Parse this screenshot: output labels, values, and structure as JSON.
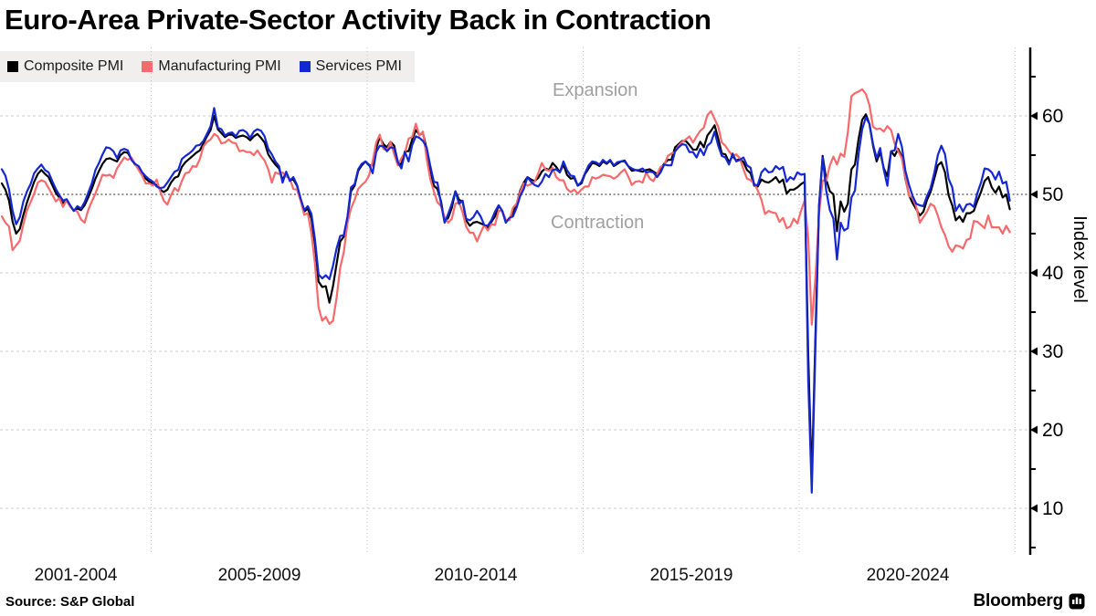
{
  "title": "Euro-Area Private-Sector Activity Back in Contraction",
  "legend": {
    "background": "#f0efed",
    "items": [
      {
        "label": "Composite PMI",
        "color": "#000000"
      },
      {
        "label": "Manufacturing PMI",
        "color": "#f8696b"
      },
      {
        "label": "Services PMI",
        "color": "#1527d3"
      }
    ]
  },
  "annotations": {
    "expansion": "Expansion",
    "contraction": "Contraction",
    "color": "#a0a0a0"
  },
  "y_axis": {
    "label": "Index level",
    "ticks": [
      10,
      20,
      30,
      40,
      50,
      60
    ],
    "minor_ticks": [
      5,
      15,
      25,
      35,
      45,
      55,
      65
    ],
    "midline_value": 50
  },
  "x_axis": {
    "labels": [
      "2001-2004",
      "2005-2009",
      "2010-2014",
      "2015-2019",
      "2020-2024"
    ],
    "gridline_years": [
      2005,
      2010,
      2015,
      2020,
      2025
    ]
  },
  "source": "Source: S&P Global",
  "brand": "Bloomberg",
  "chart_data": {
    "type": "line",
    "title": "Euro-Area Private-Sector Activity Back in Contraction",
    "xlabel": "",
    "ylabel": "Index level",
    "ylim": [
      4,
      69
    ],
    "grid": true,
    "legend_position": "top-left",
    "frequency": "monthly",
    "x_start": {
      "year": 2001,
      "month": 7
    },
    "x_end": {
      "year": 2024,
      "month": 11
    },
    "x_tick_labels": [
      "2001-2004",
      "2005-2009",
      "2010-2014",
      "2015-2019",
      "2020-2024"
    ],
    "reference_line": {
      "value": 50,
      "labels_above_below": [
        "Expansion",
        "Contraction"
      ]
    },
    "series": [
      {
        "name": "Composite PMI",
        "color": "#000000",
        "values": [
          51.4,
          50.6,
          49.2,
          46.5,
          45.0,
          45.6,
          47.4,
          49.0,
          50.3,
          51.6,
          52.6,
          53.1,
          52.6,
          52.2,
          51.2,
          50.2,
          49.6,
          48.9,
          49.2,
          48.5,
          47.9,
          48.2,
          48.0,
          48.6,
          49.6,
          50.7,
          52.0,
          53.0,
          53.9,
          54.5,
          54.6,
          54.4,
          54.2,
          55.0,
          55.4,
          55.3,
          54.5,
          53.8,
          53.4,
          52.6,
          52.0,
          51.6,
          51.4,
          51.2,
          50.6,
          50.3,
          50.6,
          51.5,
          52.1,
          52.3,
          53.5,
          54.1,
          54.5,
          54.9,
          55.3,
          55.6,
          56.5,
          57.4,
          58.2,
          60.0,
          58.3,
          57.8,
          57.3,
          57.6,
          57.6,
          57.2,
          57.4,
          57.5,
          57.3,
          56.9,
          57.4,
          57.7,
          57.2,
          56.6,
          55.1,
          54.4,
          53.8,
          53.3,
          51.8,
          52.8,
          51.8,
          51.9,
          51.1,
          49.3,
          47.8,
          48.2,
          46.9,
          43.6,
          38.9,
          38.2,
          38.3,
          36.2,
          38.3,
          41.1,
          44.0,
          44.6,
          47.0,
          50.4,
          51.1,
          53.0,
          53.7,
          54.2,
          53.7,
          53.7,
          55.9,
          57.3,
          56.4,
          56.0,
          56.7,
          56.2,
          54.1,
          53.8,
          55.5,
          55.5,
          57.0,
          58.2,
          57.6,
          57.8,
          55.8,
          53.3,
          51.1,
          50.7,
          49.1,
          46.5,
          47.0,
          48.3,
          50.4,
          49.3,
          49.1,
          46.7,
          46.0,
          46.4,
          46.5,
          46.3,
          46.1,
          45.7,
          46.5,
          47.2,
          48.6,
          47.9,
          46.5,
          46.9,
          47.7,
          48.7,
          50.5,
          51.5,
          52.2,
          51.9,
          51.7,
          52.1,
          52.9,
          53.3,
          53.1,
          54.0,
          53.5,
          52.8,
          53.8,
          52.5,
          52.0,
          52.1,
          51.1,
          51.4,
          52.6,
          53.3,
          54.0,
          53.9,
          53.6,
          54.2,
          53.9,
          54.3,
          53.6,
          53.9,
          54.2,
          54.3,
          53.6,
          53.0,
          53.1,
          53.0,
          52.9,
          53.1,
          53.2,
          52.9,
          52.6,
          53.3,
          53.9,
          54.4,
          54.4,
          56.0,
          56.4,
          56.8,
          56.8,
          56.3,
          55.7,
          55.7,
          56.7,
          56.0,
          57.5,
          58.1,
          58.8,
          57.1,
          55.2,
          55.1,
          54.1,
          54.9,
          54.3,
          54.5,
          54.1,
          53.1,
          52.7,
          51.1,
          51.0,
          51.9,
          51.6,
          51.5,
          51.8,
          52.2,
          51.5,
          51.9,
          50.1,
          50.6,
          50.6,
          50.9,
          51.3,
          51.6,
          29.7,
          13.6,
          31.9,
          48.5,
          54.9,
          51.9,
          50.4,
          50.0,
          45.3,
          49.1,
          47.8,
          48.8,
          53.2,
          53.8,
          57.1,
          59.5,
          60.2,
          59.0,
          56.2,
          54.2,
          55.4,
          53.3,
          52.3,
          55.5,
          54.9,
          55.8,
          54.8,
          52.0,
          49.9,
          48.9,
          48.1,
          47.3,
          47.8,
          49.3,
          50.3,
          52.0,
          53.7,
          54.1,
          52.8,
          49.9,
          48.6,
          46.7,
          47.2,
          46.5,
          47.6,
          47.6,
          47.9,
          49.2,
          50.3,
          51.7,
          52.2,
          50.9,
          50.2,
          51.0,
          49.6,
          50.0,
          48.1
        ]
      },
      {
        "name": "Manufacturing PMI",
        "color": "#f8696b",
        "values": [
          47.2,
          46.4,
          45.9,
          42.9,
          43.5,
          44.1,
          46.2,
          48.0,
          49.0,
          50.1,
          51.5,
          51.8,
          51.6,
          50.8,
          50.0,
          49.1,
          49.5,
          48.4,
          49.3,
          48.4,
          48.0,
          47.8,
          46.8,
          46.4,
          48.0,
          49.1,
          50.1,
          51.3,
          52.5,
          52.4,
          52.5,
          52.1,
          53.3,
          54.0,
          54.7,
          54.4,
          54.7,
          53.9,
          53.1,
          52.4,
          51.4,
          51.4,
          51.1,
          51.9,
          50.4,
          49.2,
          48.7,
          49.9,
          50.8,
          50.4,
          51.7,
          52.7,
          52.8,
          53.6,
          53.5,
          54.5,
          56.1,
          56.7,
          57.0,
          57.7,
          57.4,
          56.5,
          56.6,
          57.0,
          56.6,
          56.5,
          55.5,
          55.6,
          55.4,
          55.4,
          55.0,
          55.6,
          54.9,
          54.3,
          53.2,
          51.5,
          52.8,
          52.6,
          52.8,
          52.3,
          52.0,
          50.7,
          50.6,
          49.2,
          47.4,
          47.6,
          45.0,
          41.1,
          35.6,
          33.9,
          34.4,
          33.5,
          33.9,
          36.8,
          40.7,
          42.6,
          46.3,
          48.2,
          49.3,
          50.7,
          51.2,
          51.6,
          52.4,
          54.2,
          56.6,
          57.6,
          55.8,
          55.6,
          56.7,
          55.1,
          53.7,
          54.6,
          55.3,
          57.1,
          57.3,
          59.0,
          57.5,
          58.0,
          54.6,
          52.0,
          50.4,
          49.0,
          48.5,
          47.1,
          46.4,
          46.9,
          48.8,
          49.0,
          47.7,
          45.9,
          45.1,
          45.1,
          44.0,
          45.1,
          46.1,
          45.4,
          46.2,
          46.1,
          47.9,
          47.9,
          46.8,
          46.7,
          48.3,
          48.8,
          50.3,
          51.4,
          51.1,
          51.3,
          51.6,
          52.7,
          54.0,
          53.2,
          53.0,
          53.4,
          52.2,
          51.8,
          51.8,
          50.7,
          50.3,
          50.6,
          50.1,
          50.6,
          51.0,
          51.0,
          52.2,
          52.0,
          52.2,
          52.5,
          52.4,
          52.3,
          52.0,
          52.3,
          52.8,
          53.2,
          52.3,
          51.2,
          51.6,
          51.7,
          51.5,
          52.8,
          52.0,
          51.7,
          52.6,
          53.5,
          53.7,
          54.9,
          55.2,
          55.4,
          56.2,
          56.7,
          57.0,
          57.4,
          56.6,
          57.4,
          58.1,
          58.5,
          60.1,
          60.6,
          59.6,
          58.6,
          56.6,
          56.2,
          55.5,
          54.9,
          55.1,
          54.6,
          53.2,
          52.0,
          51.8,
          51.4,
          50.5,
          49.3,
          47.5,
          47.9,
          47.7,
          47.6,
          46.5,
          47.0,
          45.7,
          45.9,
          46.9,
          46.3,
          47.9,
          49.2,
          44.5,
          33.4,
          39.4,
          47.4,
          51.8,
          51.7,
          53.7,
          54.8,
          53.8,
          55.2,
          54.8,
          57.9,
          62.5,
          62.9,
          63.1,
          63.4,
          62.8,
          61.4,
          58.6,
          58.3,
          58.4,
          58.0,
          58.7,
          58.2,
          56.5,
          55.5,
          54.6,
          52.1,
          49.8,
          49.6,
          48.4,
          46.4,
          47.1,
          47.8,
          48.8,
          48.5,
          47.3,
          45.8,
          44.8,
          43.4,
          42.7,
          43.5,
          43.4,
          43.1,
          44.2,
          44.4,
          46.6,
          46.5,
          46.1,
          45.7,
          47.3,
          45.8,
          45.8,
          45.8,
          45.0,
          46.0,
          45.2
        ]
      },
      {
        "name": "Services PMI",
        "color": "#1527d3",
        "values": [
          53.2,
          52.4,
          50.6,
          47.9,
          46.2,
          47.1,
          49.1,
          50.4,
          51.3,
          52.7,
          53.3,
          53.8,
          53.1,
          52.8,
          51.7,
          50.7,
          49.9,
          49.2,
          49.4,
          48.6,
          47.9,
          48.5,
          48.2,
          49.0,
          50.2,
          51.4,
          53.1,
          54.0,
          55.1,
          56.0,
          55.9,
          55.5,
          54.6,
          55.6,
          55.8,
          55.6,
          54.4,
          53.9,
          53.6,
          52.8,
          52.3,
          51.9,
          51.6,
          51.0,
          50.8,
          50.9,
          51.5,
          52.2,
          52.9,
          53.1,
          54.5,
          54.9,
          55.2,
          55.6,
          56.2,
          56.3,
          56.8,
          57.7,
          58.7,
          61.0,
          58.5,
          58.3,
          57.5,
          57.8,
          57.9,
          57.4,
          58.1,
          58.2,
          57.9,
          57.2,
          58.0,
          58.3,
          58.1,
          57.4,
          55.8,
          55.1,
          54.2,
          53.6,
          51.5,
          52.9,
          51.7,
          52.2,
          51.2,
          49.5,
          48.0,
          48.5,
          47.5,
          44.2,
          39.8,
          39.3,
          39.7,
          39.2,
          40.9,
          43.1,
          44.7,
          44.8,
          47.1,
          50.9,
          51.3,
          53.2,
          53.9,
          54.2,
          53.8,
          52.7,
          55.4,
          56.2,
          56.1,
          55.5,
          56.0,
          55.9,
          54.1,
          53.3,
          55.4,
          54.2,
          56.3,
          57.4,
          57.2,
          56.8,
          56.0,
          53.7,
          51.6,
          51.5,
          48.8,
          46.4,
          47.5,
          48.8,
          50.4,
          48.8,
          49.2,
          46.9,
          46.7,
          47.1,
          47.9,
          47.2,
          46.1,
          46.0,
          46.7,
          47.8,
          48.6,
          47.9,
          46.4,
          47.0,
          47.2,
          48.3,
          49.8,
          50.7,
          52.2,
          51.6,
          51.2,
          51.0,
          51.6,
          52.6,
          52.2,
          53.1,
          53.2,
          52.8,
          54.2,
          53.1,
          52.4,
          52.3,
          51.1,
          51.6,
          52.7,
          53.7,
          54.2,
          54.1,
          53.8,
          54.4,
          54.0,
          54.4,
          53.7,
          54.1,
          54.2,
          54.2,
          53.6,
          53.3,
          53.1,
          53.1,
          53.3,
          52.8,
          52.9,
          52.8,
          52.2,
          52.8,
          53.8,
          53.7,
          53.7,
          55.5,
          56.0,
          56.4,
          56.3,
          55.4,
          55.4,
          54.7,
          55.8,
          55.0,
          56.2,
          56.6,
          58.0,
          56.2,
          54.9,
          54.7,
          53.8,
          55.2,
          54.2,
          54.4,
          54.7,
          53.7,
          53.4,
          51.2,
          51.2,
          52.8,
          53.3,
          52.8,
          52.9,
          53.6,
          53.2,
          53.5,
          51.6,
          52.2,
          51.9,
          52.8,
          52.5,
          52.6,
          26.4,
          12.0,
          30.5,
          48.3,
          54.7,
          50.5,
          48.0,
          46.9,
          41.7,
          46.4,
          45.4,
          45.7,
          49.6,
          50.5,
          55.2,
          58.3,
          59.8,
          59.0,
          56.4,
          54.6,
          55.9,
          53.1,
          51.1,
          55.5,
          55.6,
          57.7,
          56.1,
          53.0,
          51.2,
          49.8,
          48.8,
          48.6,
          48.5,
          49.8,
          50.8,
          52.7,
          55.0,
          56.2,
          55.1,
          52.0,
          50.9,
          47.9,
          48.7,
          47.8,
          48.7,
          48.8,
          48.4,
          50.2,
          51.5,
          53.3,
          53.2,
          52.8,
          51.9,
          52.9,
          51.4,
          51.6,
          49.2
        ]
      }
    ]
  }
}
